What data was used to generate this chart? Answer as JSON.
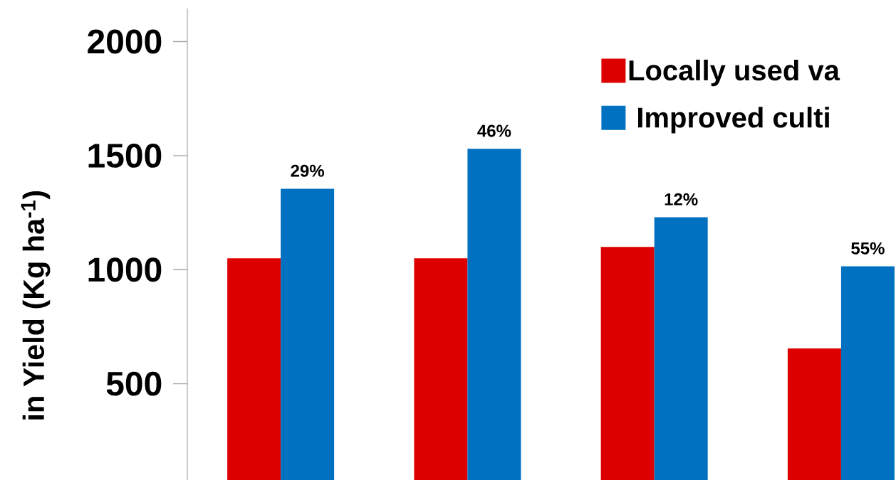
{
  "chart_data": {
    "type": "bar",
    "ylabel": "in Yield (Kg ha$^{-1}$)",
    "categories": [
      null,
      null,
      null,
      null
    ],
    "series": [
      {
        "name": "Locally used va",
        "color": "#dd0000",
        "values": [
          1050,
          1050,
          1100,
          655
        ]
      },
      {
        "name": "Improved culti",
        "color": "#0070c0",
        "values": [
          1355,
          1530,
          1230,
          1015
        ]
      }
    ],
    "annotations": [
      {
        "text": "29%",
        "y": 1355
      },
      {
        "text": "46%",
        "y": 1530
      },
      {
        "text": "12%",
        "y": 1230
      },
      {
        "text": "55%",
        "y": 1015
      }
    ],
    "ylim": [
      78,
      2145
    ],
    "yticks": [
      500,
      1000,
      1500,
      2000
    ],
    "legend": "top right",
    "grid": false
  }
}
